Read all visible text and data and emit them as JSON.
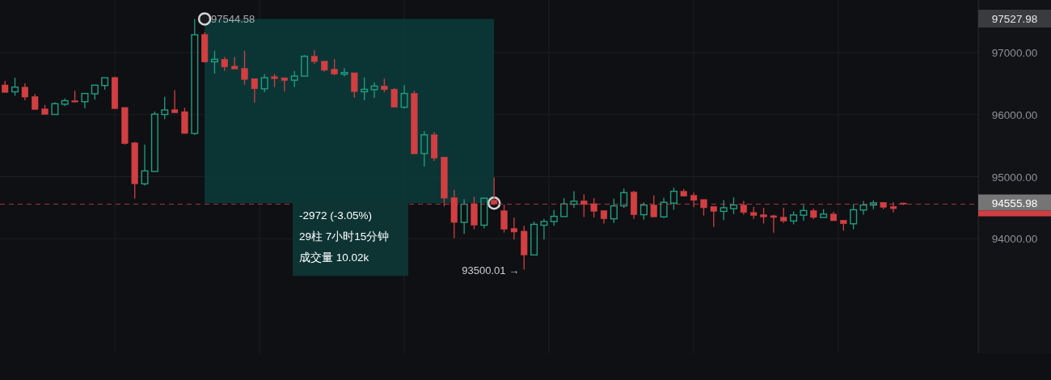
{
  "chart_data": {
    "type": "candlestick",
    "categories": [
      null,
      null,
      null,
      null,
      null,
      null,
      null,
      null,
      null,
      null,
      null,
      null,
      null,
      null,
      null,
      null,
      null,
      null,
      null,
      null,
      null,
      null,
      null,
      null,
      null,
      null,
      null,
      null,
      null,
      null,
      null,
      null,
      null,
      null,
      null,
      null,
      null,
      null,
      null,
      null,
      null,
      null,
      null,
      null,
      null,
      null,
      null,
      null,
      null,
      null,
      null,
      null,
      null,
      null,
      null,
      null,
      null,
      null,
      null,
      null,
      null,
      null,
      null,
      null,
      null,
      null,
      null,
      null,
      null,
      null,
      null,
      null,
      null,
      null,
      null,
      null,
      null,
      null,
      null,
      null,
      null,
      null,
      null,
      null,
      null,
      null,
      null,
      null,
      null,
      null,
      null,
      null,
      null,
      null,
      null,
      null,
      null,
      null
    ],
    "ohlc": [
      [
        96480,
        96546,
        96360,
        96360
      ],
      [
        96369,
        96596,
        96306,
        96444
      ],
      [
        96444,
        96506,
        96231,
        96284
      ],
      [
        96293,
        96333,
        96084,
        96084
      ],
      [
        96093,
        96156,
        96004,
        96004
      ],
      [
        96004,
        96200,
        96004,
        96177
      ],
      [
        96169,
        96262,
        96137,
        96226
      ],
      [
        96226,
        96386,
        96204,
        96204
      ],
      [
        96209,
        96342,
        96102,
        96342
      ],
      [
        96337,
        96476,
        96244,
        96476
      ],
      [
        96471,
        96596,
        96404,
        96596
      ],
      [
        96600,
        96613,
        96098,
        96098
      ],
      [
        96116,
        96116,
        95520,
        95533
      ],
      [
        95546,
        95560,
        94644,
        94884
      ],
      [
        94884,
        95520,
        94857,
        95093
      ],
      [
        95084,
        96049,
        95084,
        96009
      ],
      [
        96004,
        96289,
        95929,
        96076
      ],
      [
        96080,
        96396,
        96031,
        96031
      ],
      [
        96049,
        96111,
        95697,
        95697
      ],
      [
        95697,
        97544.58,
        95676,
        97289
      ],
      [
        97293,
        97333,
        96840,
        96849
      ],
      [
        96853,
        97031,
        96662,
        96893
      ],
      [
        96893,
        96929,
        96710,
        96769
      ],
      [
        96782,
        96929,
        96737,
        96737
      ],
      [
        96746,
        97031,
        96484,
        96569
      ],
      [
        96582,
        96582,
        96196,
        96417
      ],
      [
        96417,
        96653,
        96364,
        96596
      ],
      [
        96613,
        96653,
        96444,
        96582
      ],
      [
        96596,
        96596,
        96373,
        96551
      ],
      [
        96556,
        96706,
        96444,
        96622
      ],
      [
        96622,
        96960,
        96622,
        96942
      ],
      [
        96942,
        97040,
        96817,
        96857
      ],
      [
        96862,
        96862,
        96697,
        96716
      ],
      [
        96733,
        96897,
        96636,
        96653
      ],
      [
        96653,
        96751,
        96617,
        96680
      ],
      [
        96676,
        96676,
        96276,
        96373
      ],
      [
        96369,
        96600,
        96231,
        96409
      ],
      [
        96404,
        96520,
        96271,
        96462
      ],
      [
        96462,
        96582,
        96364,
        96404
      ],
      [
        96409,
        96431,
        96120,
        96120
      ],
      [
        96120,
        96476,
        96098,
        96342
      ],
      [
        96342,
        96386,
        95369,
        95369
      ],
      [
        95373,
        95733,
        95164,
        95675
      ],
      [
        95675,
        95720,
        95253,
        95297
      ],
      [
        95316,
        95316,
        94520,
        94653
      ],
      [
        94662,
        94787,
        94009,
        94262
      ],
      [
        94262,
        94636,
        94076,
        94556
      ],
      [
        94564,
        94676,
        94151,
        94217
      ],
      [
        94217,
        94653,
        94164,
        94653
      ],
      [
        94620,
        94987,
        94540,
        94560
      ],
      [
        94449,
        94551,
        94098,
        94151
      ],
      [
        94164,
        94342,
        93987,
        94107
      ],
      [
        94120,
        94209,
        93500.01,
        93737
      ],
      [
        93737,
        94276,
        93737,
        94231
      ],
      [
        94217,
        94320,
        93987,
        94276
      ],
      [
        94276,
        94462,
        94209,
        94360
      ],
      [
        94356,
        94653,
        94356,
        94560
      ],
      [
        94556,
        94764,
        94498,
        94604
      ],
      [
        94609,
        94716,
        94351,
        94551
      ],
      [
        94564,
        94653,
        94342,
        94440
      ],
      [
        94453,
        94453,
        94244,
        94320
      ],
      [
        94320,
        94644,
        94253,
        94529
      ],
      [
        94529,
        94809,
        94498,
        94742
      ],
      [
        94751,
        94773,
        94320,
        94386
      ],
      [
        94386,
        94586,
        94307,
        94542
      ],
      [
        94542,
        94697,
        94351,
        94351
      ],
      [
        94351,
        94662,
        94333,
        94586
      ],
      [
        94573,
        94822,
        94466,
        94764
      ],
      [
        94764,
        94800,
        94684,
        94684
      ],
      [
        94697,
        94742,
        94506,
        94617
      ],
      [
        94631,
        94631,
        94373,
        94498
      ],
      [
        94520,
        94520,
        94187,
        94440
      ],
      [
        94440,
        94622,
        94298,
        94498
      ],
      [
        94484,
        94666,
        94396,
        94542
      ],
      [
        94542,
        94609,
        94386,
        94422
      ],
      [
        94422,
        94511,
        94320,
        94373
      ],
      [
        94386,
        94498,
        94244,
        94351
      ],
      [
        94369,
        94386,
        94098,
        94342
      ],
      [
        94346,
        94498,
        94253,
        94284
      ],
      [
        94284,
        94440,
        94231,
        94382
      ],
      [
        94378,
        94542,
        94289,
        94453
      ],
      [
        94453,
        94484,
        94311,
        94342
      ],
      [
        94342,
        94476,
        94342,
        94396
      ],
      [
        94396,
        94431,
        94289,
        94289
      ],
      [
        94298,
        94298,
        94129,
        94240
      ],
      [
        94240,
        94556,
        94151,
        94466
      ],
      [
        94462,
        94609,
        94386,
        94542
      ],
      [
        94542,
        94617,
        94476,
        94577
      ],
      [
        94586,
        94586,
        94476,
        94506
      ],
      [
        94520,
        94586,
        94422,
        94484
      ],
      [
        94575,
        94580,
        94540,
        94555.98
      ],
      null,
      null,
      null,
      null,
      null,
      null,
      null
    ],
    "colors": [
      "#d13f42",
      "#1f9e83",
      "#d13f42",
      "#d13f42",
      "#d13f42",
      "#1f9e83",
      "#1f9e83",
      "#d13f42",
      "#1f9e83",
      "#1f9e83",
      "#1f9e83",
      "#d13f42",
      "#d13f42",
      "#d13f42",
      "#1f9e83",
      "#1f9e83",
      "#1f9e83",
      "#d13f42",
      "#d13f42",
      "#1f9e83",
      "#d13f42",
      "#1f9e83",
      "#d13f42",
      "#d13f42",
      "#d13f42",
      "#d13f42",
      "#1f9e83",
      "#d13f42",
      "#d13f42",
      "#1f9e83",
      "#1f9e83",
      "#d13f42",
      "#d13f42",
      "#d13f42",
      "#1f9e83",
      "#d13f42",
      "#1f9e83",
      "#1f9e83",
      "#d13f42",
      "#d13f42",
      "#1f9e83",
      "#d13f42",
      "#1f9e83",
      "#d13f42",
      "#d13f42",
      "#d13f42",
      "#1f9e83",
      "#d13f42",
      "#1f9e83",
      "#d13f42",
      "#d13f42",
      "#d13f42",
      "#d13f42",
      "#1f9e83",
      "#1f9e83",
      "#1f9e83",
      "#1f9e83",
      "#1f9e83",
      "#d13f42",
      "#d13f42",
      "#d13f42",
      "#1f9e83",
      "#1f9e83",
      "#d13f42",
      "#1f9e83",
      "#d13f42",
      "#1f9e83",
      "#1f9e83",
      "#d13f42",
      "#d13f42",
      "#d13f42",
      "#d13f42",
      "#1f9e83",
      "#1f9e83",
      "#d13f42",
      "#d13f42",
      "#d13f42",
      "#d13f42",
      "#d13f42",
      "#1f9e83",
      "#1f9e83",
      "#d13f42",
      "#1f9e83",
      "#d13f42",
      "#d13f42",
      "#1f9e83",
      "#1f9e83",
      "#1f9e83",
      "#d13f42",
      "#d13f42",
      "#d13f42",
      null,
      null,
      null,
      null,
      null,
      null,
      null
    ],
    "ylim": [
      92150,
      97850
    ],
    "yticks": [
      {
        "value": 94000,
        "label": "94000.00"
      },
      {
        "value": 95000,
        "label": "95000.00"
      },
      {
        "value": 96000,
        "label": "96000.00"
      },
      {
        "value": 97000,
        "label": "97000.00"
      }
    ],
    "grid": true,
    "ref_lines": [
      {
        "axis": "y",
        "value": 94555.98,
        "label": "94555.98",
        "color": "#d13f42",
        "line_style": "dashed"
      }
    ],
    "bands": [
      {
        "axis": "y",
        "from": 94572.58,
        "to": 97544.58,
        "color": "#0b3a3a"
      }
    ],
    "annotations": [
      {
        "text": "97544.58",
        "y": 97544.58
      },
      "93500.01 →",
      "97527.98",
      "-2972 (-3.05%)",
      "29柱 7小时15分钟",
      "成交量 10.02k"
    ]
  }
}
